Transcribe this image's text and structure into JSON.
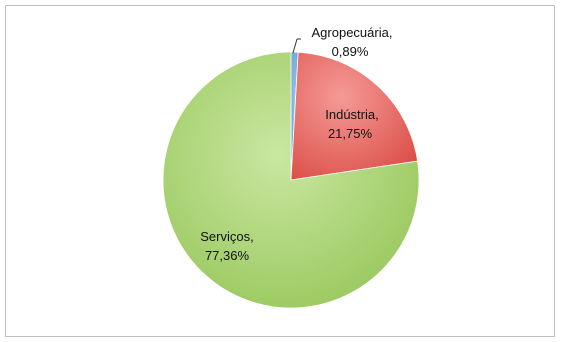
{
  "chart_data": {
    "type": "pie",
    "categories": [
      "Agropecuária",
      "Indústria",
      "Serviços"
    ],
    "values": [
      0.89,
      21.75,
      77.36
    ],
    "data_labels": [
      {
        "name": "Agropecuária,",
        "value": "0,89%"
      },
      {
        "name": "Indústria,",
        "value": "21,75%"
      },
      {
        "name": "Serviços,",
        "value": "77,36%"
      }
    ],
    "colors": [
      "#6fa8dc",
      "#e8635f",
      "#a8d468"
    ],
    "legend": "none",
    "title": ""
  }
}
